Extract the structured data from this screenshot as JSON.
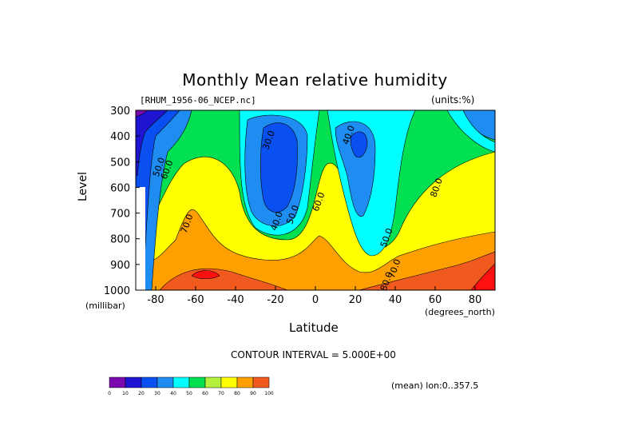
{
  "chart_data": {
    "type": "heatmap",
    "title": "Monthly Mean relative humidity",
    "file_label": "[RHUM_1956-06_NCEP.nc]",
    "units_label": "(units:%)",
    "xlabel": "Latitude",
    "ylabel": "Level",
    "x_units": "(degrees_north)",
    "y_units": "(millibar)",
    "xlim": [
      -90,
      90
    ],
    "ylim": [
      1000,
      300
    ],
    "x_ticks": [
      -80,
      -60,
      -40,
      -20,
      0,
      20,
      40,
      60,
      80
    ],
    "y_ticks": [
      300,
      400,
      500,
      600,
      700,
      800,
      900,
      1000
    ],
    "contour_interval": "CONTOUR INTERVAL = 5.000E+00",
    "mean_label": "(mean) lon:0..357.5",
    "colorbar": {
      "labels": [
        "0",
        "10",
        "20",
        "30",
        "40",
        "50",
        "60",
        "70",
        "80",
        "90",
        "100"
      ],
      "colors": [
        "#7a0ab0",
        "#1e14d2",
        "#0a50f0",
        "#1e8cf0",
        "#00ffff",
        "#00e050",
        "#b4f03c",
        "#ffff00",
        "#ffa000",
        "#f05a1e",
        "#ff1010"
      ]
    },
    "contour_labels": [
      {
        "text": "30.0",
        "x": -22,
        "y": 420
      },
      {
        "text": "40.0",
        "x": 18,
        "y": 400
      },
      {
        "text": "50.0",
        "x": -77,
        "y": 525
      },
      {
        "text": "60.0",
        "x": -73,
        "y": 535
      },
      {
        "text": "80.0",
        "x": 62,
        "y": 605
      },
      {
        "text": "60.0",
        "x": 3,
        "y": 660
      },
      {
        "text": "70.0",
        "x": -63,
        "y": 745
      },
      {
        "text": "40.0",
        "x": -18,
        "y": 735
      },
      {
        "text": "50.0",
        "x": -10,
        "y": 710
      },
      {
        "text": "50.0",
        "x": 37,
        "y": 800
      },
      {
        "text": "70.0",
        "x": 41,
        "y": 920
      },
      {
        "text": "80.0",
        "x": 37,
        "y": 970
      }
    ]
  }
}
